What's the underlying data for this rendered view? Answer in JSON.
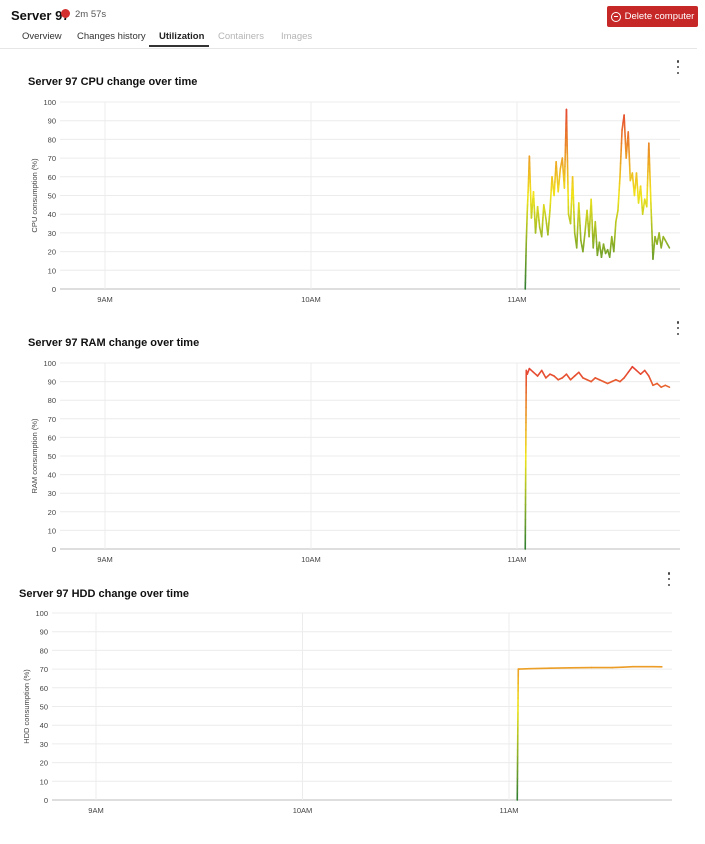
{
  "server": {
    "name": "Server 97",
    "status_color": "#d32f2f",
    "uptime": "2m 57s"
  },
  "actions": {
    "delete_label": "Delete computer",
    "delete_color": "#c62828"
  },
  "tabs": [
    {
      "label": "Overview",
      "state": "normal"
    },
    {
      "label": "Changes history",
      "state": "normal"
    },
    {
      "label": "Utilization",
      "state": "active"
    },
    {
      "label": "Containers",
      "state": "disabled"
    },
    {
      "label": "Images",
      "state": "disabled"
    }
  ],
  "charts": {
    "cpu": {
      "title": "Server 97 CPU change over time",
      "menu_icon": "more-vert-icon"
    },
    "ram": {
      "title": "Server 97 RAM change over time",
      "menu_icon": "more-vert-icon"
    },
    "hdd": {
      "title": "Server 97 HDD change over time",
      "menu_icon": "more-vert-icon"
    }
  },
  "chart_data": [
    {
      "type": "line",
      "title": "Server 97 CPU change over time",
      "ylabel": "CPU consumption (%)",
      "xlabel": "",
      "ylim": [
        0,
        100
      ],
      "yticks": [
        0,
        10,
        20,
        30,
        40,
        50,
        60,
        70,
        80,
        90,
        100
      ],
      "xlim": [
        8.74,
        11.77
      ],
      "xticks": [
        9,
        10,
        11
      ],
      "xtick_labels": [
        "9AM",
        "10AM",
        "11AM"
      ],
      "grid": true,
      "color_scale": [
        "#2e7d32",
        "#f1e51c",
        "#e53935"
      ],
      "x": [
        11.04,
        11.045,
        11.05,
        11.055,
        11.06,
        11.07,
        11.08,
        11.09,
        11.1,
        11.11,
        11.12,
        11.13,
        11.14,
        11.15,
        11.16,
        11.17,
        11.18,
        11.19,
        11.2,
        11.21,
        11.22,
        11.23,
        11.24,
        11.25,
        11.26,
        11.27,
        11.28,
        11.29,
        11.3,
        11.31,
        11.32,
        11.33,
        11.34,
        11.35,
        11.36,
        11.37,
        11.38,
        11.39,
        11.4,
        11.41,
        11.42,
        11.43,
        11.44,
        11.45,
        11.46,
        11.47,
        11.48,
        11.49,
        11.5,
        11.51,
        11.52,
        11.53,
        11.54,
        11.55,
        11.56,
        11.57,
        11.58,
        11.59,
        11.6,
        11.61,
        11.62,
        11.63,
        11.64,
        11.65,
        11.66,
        11.67,
        11.68,
        11.69,
        11.7,
        11.71,
        11.72,
        11.73,
        11.74
      ],
      "y": [
        0,
        25,
        42,
        55,
        71,
        38,
        52,
        30,
        44,
        33,
        28,
        45,
        38,
        29,
        42,
        60,
        50,
        68,
        52,
        64,
        70,
        54,
        96,
        40,
        35,
        60,
        30,
        22,
        46,
        26,
        20,
        30,
        42,
        28,
        48,
        22,
        36,
        18,
        25,
        17,
        24,
        19,
        21,
        17,
        28,
        20,
        36,
        42,
        60,
        85,
        93,
        70,
        84,
        58,
        62,
        50,
        62,
        46,
        55,
        40,
        48,
        44,
        78,
        46,
        16,
        28,
        24,
        30,
        22,
        28,
        26,
        24,
        22
      ]
    },
    {
      "type": "line",
      "title": "Server 97 RAM change over time",
      "ylabel": "RAM consumption (%)",
      "xlabel": "",
      "ylim": [
        0,
        100
      ],
      "yticks": [
        0,
        10,
        20,
        30,
        40,
        50,
        60,
        70,
        80,
        90,
        100
      ],
      "xlim": [
        8.74,
        11.77
      ],
      "xticks": [
        9,
        10,
        11
      ],
      "xtick_labels": [
        "9AM",
        "10AM",
        "11AM"
      ],
      "grid": true,
      "color_scale": [
        "#2e7d32",
        "#f1e51c",
        "#e53935"
      ],
      "x": [
        11.04,
        11.045,
        11.05,
        11.06,
        11.08,
        11.1,
        11.12,
        11.14,
        11.16,
        11.18,
        11.2,
        11.22,
        11.24,
        11.26,
        11.28,
        11.3,
        11.32,
        11.34,
        11.36,
        11.38,
        11.4,
        11.42,
        11.44,
        11.46,
        11.48,
        11.5,
        11.52,
        11.54,
        11.56,
        11.58,
        11.6,
        11.62,
        11.64,
        11.66,
        11.68,
        11.7,
        11.72,
        11.74
      ],
      "y": [
        0,
        96,
        94,
        97,
        95,
        93,
        96,
        92,
        94,
        93,
        91,
        92,
        94,
        91,
        93,
        95,
        92,
        91,
        90,
        92,
        91,
        90,
        89,
        90,
        91,
        90,
        92,
        95,
        98,
        96,
        94,
        96,
        93,
        88,
        89,
        87,
        88,
        87
      ]
    },
    {
      "type": "line",
      "title": "Server 97 HDD change over time",
      "ylabel": "HDD consumption (%)",
      "xlabel": "",
      "ylim": [
        0,
        100
      ],
      "yticks": [
        0,
        10,
        20,
        30,
        40,
        50,
        60,
        70,
        80,
        90,
        100
      ],
      "xlim": [
        8.74,
        11.77
      ],
      "xticks": [
        9,
        10,
        11
      ],
      "xtick_labels": [
        "9AM",
        "10AM",
        "11AM"
      ],
      "grid": true,
      "color_scale": [
        "#2e7d32",
        "#f1e51c",
        "#e53935"
      ],
      "x": [
        11.04,
        11.045,
        11.05,
        11.1,
        11.2,
        11.3,
        11.4,
        11.5,
        11.55,
        11.6,
        11.7,
        11.74
      ],
      "y": [
        0,
        70,
        70,
        70.2,
        70.5,
        70.7,
        70.8,
        70.8,
        71,
        71.3,
        71.3,
        71.2
      ]
    }
  ]
}
